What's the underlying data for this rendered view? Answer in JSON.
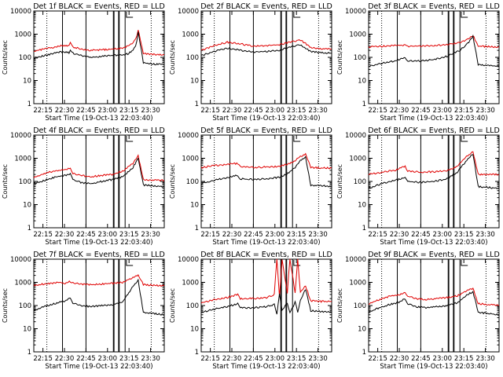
{
  "start_time_label": "Start Time (19-Oct-13 22:03:40)",
  "colors": {
    "events": "#000000",
    "lld": "#e00000",
    "frame": "#000000"
  },
  "chart_data": [
    {
      "type": "line",
      "title": "Det 1f BLACK = Events, RED = LLD",
      "xlabel": "Start Time (19-Oct-13 22:03:40)",
      "ylabel": "Counts/sec",
      "yscale": "log",
      "ylim": [
        1,
        10000
      ],
      "grid": false,
      "y_ticks": [
        "1",
        "10",
        "100",
        "1000",
        "10000"
      ],
      "x_ticks": [
        "22:15",
        "22:30",
        "22:45",
        "23:00",
        "23:15",
        "23:30"
      ],
      "xlim_minutes": [
        0,
        100
      ],
      "series": [
        {
          "name": "BLACK = Events",
          "x": [
            0,
            8,
            16,
            20,
            24,
            27,
            28,
            30,
            36,
            44,
            52,
            60,
            68,
            72,
            76,
            78,
            79,
            80,
            84,
            88,
            92,
            96,
            100
          ],
          "y": [
            90,
            120,
            150,
            170,
            170,
            160,
            220,
            150,
            120,
            100,
            110,
            120,
            130,
            140,
            200,
            300,
            500,
            1200,
            60,
            55,
            52,
            50,
            48
          ]
        },
        {
          "name": "RED = LLD",
          "x": [
            0,
            8,
            16,
            20,
            24,
            27,
            28,
            30,
            36,
            44,
            52,
            60,
            68,
            72,
            76,
            78,
            79,
            80,
            84,
            88,
            92,
            96,
            100
          ],
          "y": [
            180,
            230,
            280,
            310,
            330,
            300,
            420,
            280,
            230,
            200,
            210,
            230,
            250,
            300,
            420,
            600,
            900,
            1600,
            150,
            140,
            135,
            130,
            130
          ]
        }
      ]
    },
    {
      "type": "line",
      "title": "Det 2f BLACK = Events, RED = LLD",
      "xlabel": "Start Time (19-Oct-13 22:03:40)",
      "ylabel": "Counts/sec",
      "yscale": "log",
      "ylim": [
        1,
        10000
      ],
      "grid": false,
      "y_ticks": [
        "1",
        "10",
        "100",
        "1000",
        "10000"
      ],
      "x_ticks": [
        "22:15",
        "22:30",
        "22:45",
        "23:00",
        "23:15",
        "23:30"
      ],
      "xlim_minutes": [
        0,
        100
      ],
      "series": [
        {
          "name": "BLACK = Events",
          "x": [
            0,
            10,
            20,
            30,
            40,
            50,
            60,
            70,
            76,
            80,
            84,
            92,
            100
          ],
          "y": [
            120,
            180,
            250,
            200,
            170,
            180,
            200,
            300,
            350,
            250,
            180,
            160,
            150
          ]
        },
        {
          "name": "RED = LLD",
          "x": [
            0,
            10,
            20,
            30,
            40,
            50,
            60,
            70,
            76,
            80,
            84,
            92,
            100
          ],
          "y": [
            200,
            320,
            450,
            380,
            300,
            320,
            350,
            480,
            550,
            400,
            260,
            240,
            230
          ]
        }
      ]
    },
    {
      "type": "line",
      "title": "Det 3f BLACK = Events, RED = LLD",
      "xlabel": "Start Time (19-Oct-13 22:03:40)",
      "ylabel": "Counts/sec",
      "yscale": "log",
      "ylim": [
        1,
        10000
      ],
      "grid": false,
      "y_ticks": [
        "1",
        "10",
        "100",
        "1000",
        "10000"
      ],
      "x_ticks": [
        "22:15",
        "22:30",
        "22:45",
        "23:00",
        "23:15",
        "23:30"
      ],
      "xlim_minutes": [
        0,
        100
      ],
      "series": [
        {
          "name": "BLACK = Events",
          "x": [
            0,
            10,
            20,
            28,
            30,
            40,
            50,
            60,
            70,
            76,
            80,
            84,
            92,
            100
          ],
          "y": [
            40,
            55,
            70,
            100,
            70,
            70,
            80,
            110,
            200,
            400,
            800,
            50,
            45,
            40
          ]
        },
        {
          "name": "RED = LLD",
          "x": [
            0,
            10,
            20,
            28,
            30,
            40,
            50,
            60,
            70,
            76,
            80,
            84,
            92,
            100
          ],
          "y": [
            280,
            300,
            320,
            330,
            300,
            310,
            320,
            350,
            450,
            600,
            900,
            300,
            290,
            280
          ]
        }
      ]
    },
    {
      "type": "line",
      "title": "Det 4f BLACK = Events, RED = LLD",
      "xlabel": "Start Time (19-Oct-13 22:03:40)",
      "ylabel": "Counts/sec",
      "yscale": "log",
      "ylim": [
        1,
        10000
      ],
      "grid": false,
      "y_ticks": [
        "1",
        "10",
        "100",
        "1000",
        "10000"
      ],
      "x_ticks": [
        "22:15",
        "22:30",
        "22:45",
        "23:00",
        "23:15",
        "23:30"
      ],
      "xlim_minutes": [
        0,
        100
      ],
      "series": [
        {
          "name": "BLACK = Events",
          "x": [
            0,
            8,
            16,
            24,
            28,
            30,
            36,
            44,
            52,
            60,
            68,
            72,
            76,
            80,
            84,
            92,
            100
          ],
          "y": [
            80,
            110,
            150,
            180,
            220,
            120,
            90,
            80,
            100,
            120,
            160,
            250,
            400,
            1000,
            70,
            65,
            60
          ]
        },
        {
          "name": "RED = LLD",
          "x": [
            0,
            8,
            16,
            24,
            28,
            30,
            36,
            44,
            52,
            60,
            68,
            72,
            76,
            80,
            84,
            92,
            100
          ],
          "y": [
            150,
            220,
            280,
            330,
            380,
            220,
            180,
            160,
            180,
            200,
            280,
            400,
            600,
            1300,
            120,
            115,
            110
          ]
        }
      ]
    },
    {
      "type": "line",
      "title": "Det 5f BLACK = Events, RED = LLD",
      "xlabel": "Start Time (19-Oct-13 22:03:40)",
      "ylabel": "Counts/sec",
      "yscale": "log",
      "ylim": [
        1,
        10000
      ],
      "grid": false,
      "y_ticks": [
        "1",
        "10",
        "100",
        "1000",
        "10000"
      ],
      "x_ticks": [
        "22:15",
        "22:30",
        "22:45",
        "23:00",
        "23:15",
        "23:30"
      ],
      "xlim_minutes": [
        0,
        100
      ],
      "series": [
        {
          "name": "BLACK = Events",
          "x": [
            0,
            10,
            20,
            28,
            30,
            40,
            50,
            60,
            68,
            72,
            76,
            80,
            84,
            92,
            100
          ],
          "y": [
            80,
            110,
            150,
            180,
            130,
            120,
            130,
            150,
            250,
            400,
            800,
            1100,
            70,
            65,
            60
          ]
        },
        {
          "name": "RED = LLD",
          "x": [
            0,
            10,
            20,
            28,
            30,
            40,
            50,
            60,
            68,
            72,
            76,
            80,
            84,
            92,
            100
          ],
          "y": [
            400,
            480,
            550,
            600,
            450,
            400,
            420,
            450,
            600,
            800,
            1200,
            1500,
            400,
            380,
            380
          ]
        }
      ]
    },
    {
      "type": "line",
      "title": "Det 6f BLACK = Events, RED = LLD",
      "xlabel": "Start Time (19-Oct-13 22:03:40)",
      "ylabel": "Counts/sec",
      "yscale": "log",
      "ylim": [
        1,
        10000
      ],
      "grid": false,
      "y_ticks": [
        "1",
        "10",
        "100",
        "1000",
        "10000"
      ],
      "x_ticks": [
        "22:15",
        "22:30",
        "22:45",
        "23:00",
        "23:15",
        "23:30"
      ],
      "xlim_minutes": [
        0,
        100
      ],
      "series": [
        {
          "name": "BLACK = Events",
          "x": [
            0,
            10,
            20,
            28,
            30,
            40,
            50,
            60,
            68,
            72,
            76,
            80,
            84,
            92,
            100
          ],
          "y": [
            50,
            80,
            110,
            150,
            100,
            90,
            100,
            130,
            250,
            500,
            900,
            1500,
            60,
            55,
            50
          ]
        },
        {
          "name": "RED = LLD",
          "x": [
            0,
            10,
            20,
            28,
            30,
            40,
            50,
            60,
            68,
            72,
            76,
            80,
            84,
            92,
            100
          ],
          "y": [
            200,
            250,
            300,
            450,
            280,
            250,
            260,
            300,
            450,
            800,
            1300,
            2000,
            200,
            200,
            200
          ]
        }
      ]
    },
    {
      "type": "line",
      "title": "Det 7f BLACK = Events, RED = LLD",
      "xlabel": "Start Time (19-Oct-13 22:03:40)",
      "ylabel": "Counts/sec",
      "yscale": "log",
      "ylim": [
        1,
        10000
      ],
      "grid": false,
      "y_ticks": [
        "1",
        "10",
        "100",
        "1000",
        "10000"
      ],
      "x_ticks": [
        "22:15",
        "22:30",
        "22:45",
        "23:00",
        "23:15",
        "23:30"
      ],
      "xlim_minutes": [
        0,
        100
      ],
      "series": [
        {
          "name": "BLACK = Events",
          "x": [
            0,
            8,
            16,
            20,
            24,
            28,
            30,
            36,
            44,
            52,
            60,
            68,
            72,
            76,
            80,
            84,
            92,
            100
          ],
          "y": [
            60,
            90,
            120,
            140,
            150,
            220,
            130,
            100,
            90,
            100,
            110,
            140,
            300,
            700,
            1200,
            50,
            45,
            40
          ]
        },
        {
          "name": "RED = LLD",
          "x": [
            0,
            8,
            16,
            20,
            24,
            28,
            30,
            36,
            44,
            52,
            60,
            68,
            72,
            76,
            80,
            84,
            92,
            100
          ],
          "y": [
            750,
            850,
            950,
            1000,
            900,
            1100,
            950,
            850,
            800,
            850,
            900,
            1000,
            1300,
            1600,
            2000,
            800,
            750,
            700
          ]
        }
      ]
    },
    {
      "type": "line",
      "title": "Det 8f BLACK = Events, RED = LLD",
      "xlabel": "Start Time (19-Oct-13 22:03:40)",
      "ylabel": "Counts/sec",
      "yscale": "log",
      "ylim": [
        1,
        10000
      ],
      "grid": false,
      "y_ticks": [
        "1",
        "10",
        "100",
        "1000",
        "10000"
      ],
      "x_ticks": [
        "22:15",
        "22:30",
        "22:45",
        "23:00",
        "23:15",
        "23:30"
      ],
      "xlim_minutes": [
        0,
        100
      ],
      "series": [
        {
          "name": "BLACK = Events",
          "x": [
            0,
            10,
            20,
            28,
            30,
            40,
            50,
            56,
            58,
            60,
            62,
            66,
            68,
            72,
            74,
            76,
            80,
            84,
            92,
            100
          ],
          "y": [
            50,
            70,
            90,
            120,
            80,
            80,
            90,
            110,
            40,
            300,
            60,
            130,
            50,
            140,
            50,
            160,
            500,
            60,
            55,
            50
          ]
        },
        {
          "name": "RED = LLD",
          "x": [
            0,
            10,
            20,
            28,
            30,
            40,
            50,
            56,
            58,
            60,
            62,
            66,
            68,
            72,
            74,
            76,
            80,
            84,
            92,
            100
          ],
          "y": [
            130,
            180,
            220,
            300,
            200,
            200,
            220,
            300,
            10000,
            250,
            10000,
            350,
            10000,
            350,
            10000,
            380,
            700,
            160,
            150,
            150
          ]
        }
      ]
    },
    {
      "type": "line",
      "title": "Det 9f BLACK = Events, RED = LLD",
      "xlabel": "Start Time (19-Oct-13 22:03:40)",
      "ylabel": "Counts/sec",
      "yscale": "log",
      "ylim": [
        1,
        10000
      ],
      "grid": false,
      "y_ticks": [
        "1",
        "10",
        "100",
        "1000",
        "10000"
      ],
      "x_ticks": [
        "22:15",
        "22:30",
        "22:45",
        "23:00",
        "23:15",
        "23:30"
      ],
      "xlim_minutes": [
        0,
        100
      ],
      "series": [
        {
          "name": "BLACK = Events",
          "x": [
            0,
            8,
            16,
            24,
            28,
            30,
            36,
            44,
            52,
            60,
            68,
            72,
            76,
            80,
            84,
            92,
            100
          ],
          "y": [
            50,
            80,
            110,
            140,
            200,
            120,
            90,
            80,
            90,
            100,
            130,
            200,
            300,
            400,
            50,
            45,
            40
          ]
        },
        {
          "name": "RED = LLD",
          "x": [
            0,
            8,
            16,
            24,
            28,
            30,
            36,
            44,
            52,
            60,
            68,
            72,
            76,
            80,
            84,
            92,
            100
          ],
          "y": [
            120,
            180,
            250,
            300,
            380,
            250,
            200,
            180,
            200,
            220,
            260,
            350,
            450,
            550,
            120,
            110,
            100
          ]
        }
      ]
    }
  ]
}
